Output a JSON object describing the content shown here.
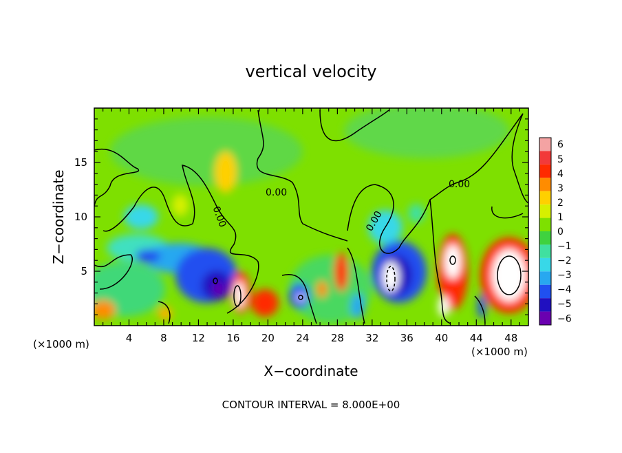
{
  "chart_data": {
    "type": "heatmap",
    "title": "vertical velocity",
    "xlabel": "X−coordinate",
    "ylabel": "Z−coordinate",
    "x_unit_left": "(×1000 m)",
    "x_unit_right": "(×1000 m)",
    "footer": "CONTOUR INTERVAL = 8.000E+00",
    "xlim": [
      0,
      50
    ],
    "ylim": [
      0,
      20
    ],
    "x_ticks": [
      4,
      8,
      12,
      16,
      20,
      24,
      28,
      32,
      36,
      40,
      44,
      48
    ],
    "y_ticks": [
      5,
      10,
      15
    ],
    "contour_labels": [
      "0.00",
      "0.00",
      "0.00",
      "0.00"
    ],
    "colorbar": {
      "levels": [
        "6",
        "5",
        "4",
        "3",
        "2",
        "1",
        "0",
        "−1",
        "−2",
        "−3",
        "−4",
        "−5",
        "−6"
      ],
      "colors": [
        "#f4a3a3",
        "#f23a3a",
        "#ff2b00",
        "#ff8c00",
        "#ffd000",
        "#d6f000",
        "#7ee000",
        "#3fd23f",
        "#40e0a0",
        "#38d8e8",
        "#28a8f0",
        "#2050f0",
        "#2010c0",
        "#6a00b0"
      ]
    },
    "features": [
      {
        "x": 14,
        "z": 3,
        "value": -6
      },
      {
        "x": 34,
        "z": 4.5,
        "value": -6
      },
      {
        "x": 16.5,
        "z": 3,
        "value": 6
      },
      {
        "x": 47,
        "z": 4.5,
        "value": 6
      },
      {
        "x": 41.5,
        "z": 5.5,
        "value": 6
      },
      {
        "x": 20,
        "z": 2.5,
        "value": 4
      },
      {
        "x": 23.5,
        "z": 2.5,
        "value": -5
      },
      {
        "x": 15,
        "z": 14,
        "value": 2
      }
    ]
  }
}
